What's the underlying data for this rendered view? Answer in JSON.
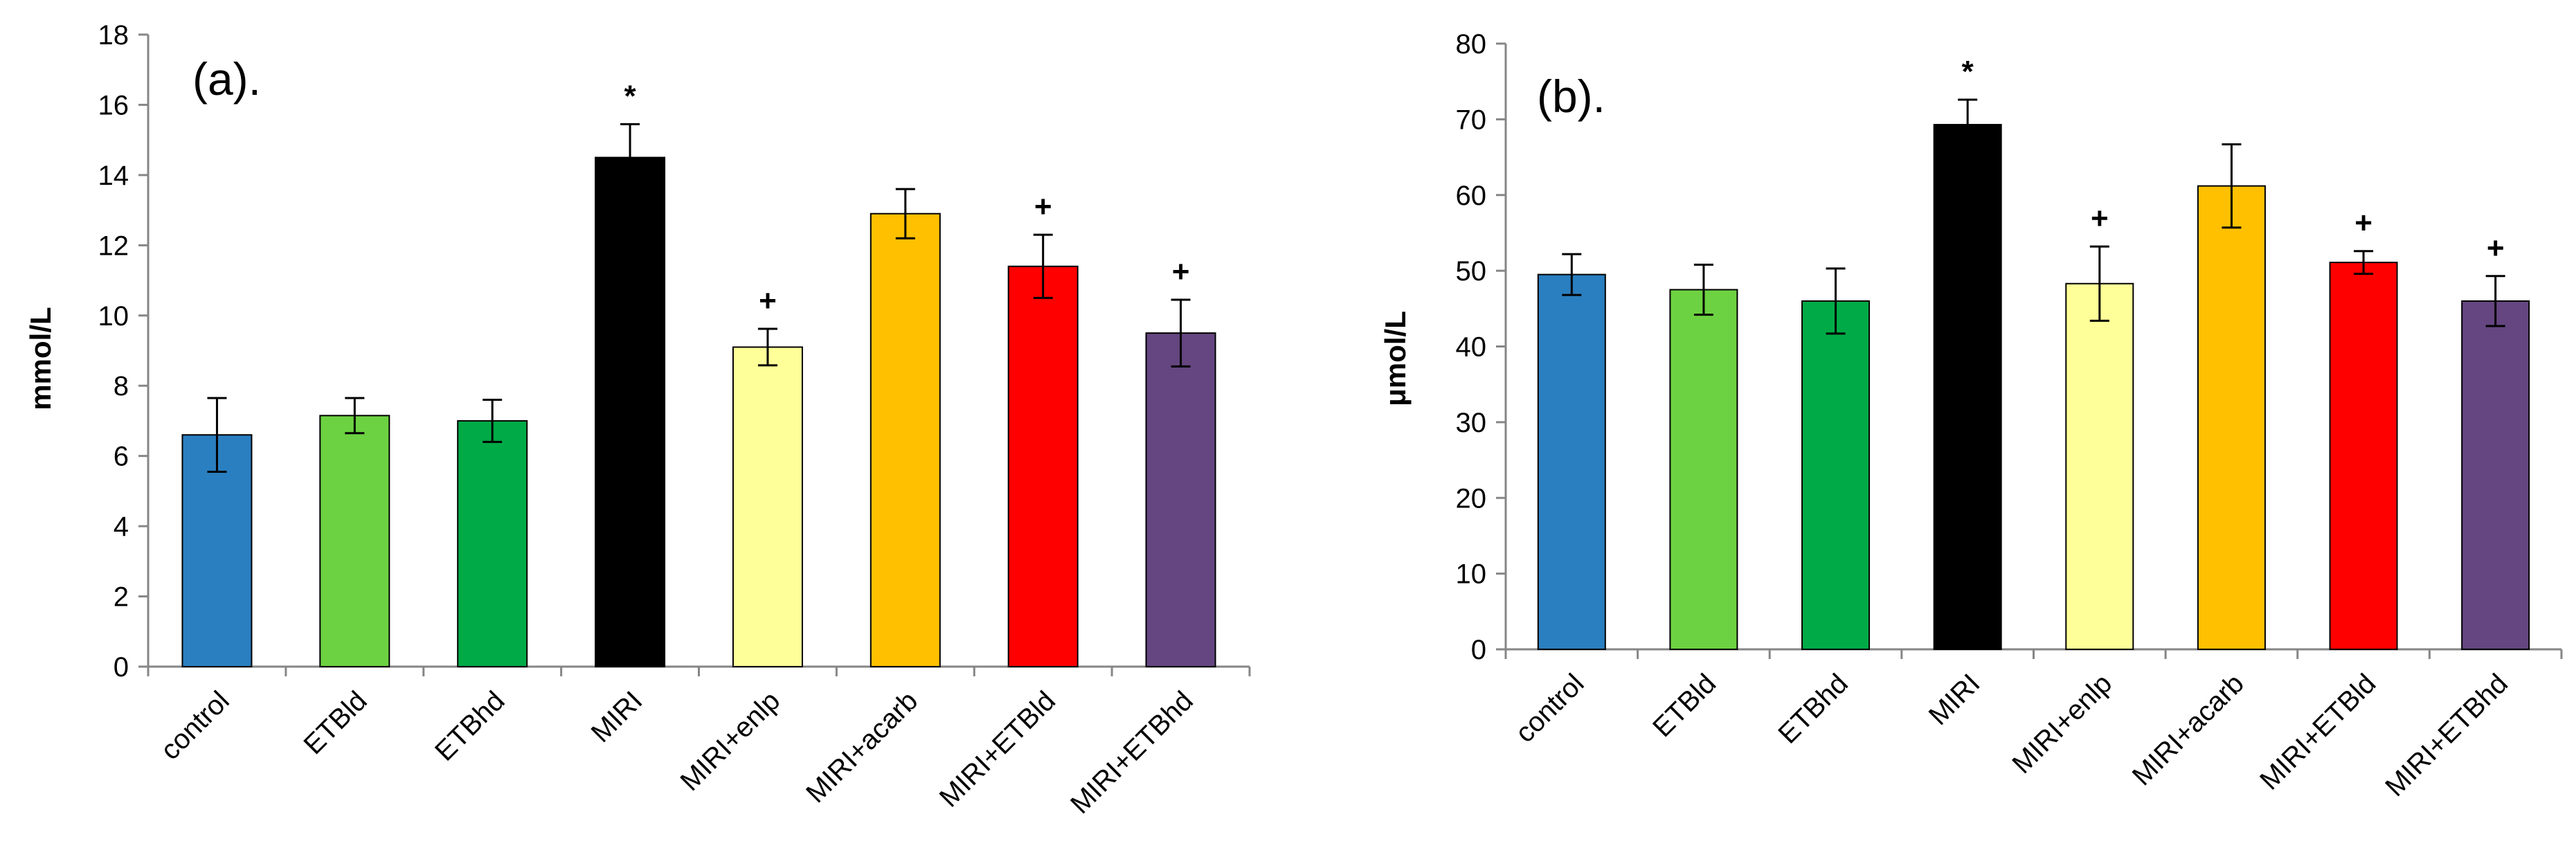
{
  "chart_data": [
    {
      "type": "bar",
      "panel_label": "(a).",
      "ylabel": "mmol/L",
      "xlabel": "",
      "ylim": [
        0,
        18
      ],
      "ytick_step": 2,
      "yticks": [
        "0",
        "2",
        "4",
        "6",
        "8",
        "10",
        "12",
        "14",
        "16",
        "18"
      ],
      "categories": [
        "control",
        "ETBld",
        "ETBhd",
        "MIRI",
        "MIRI+enlp",
        "MIRI+acarb",
        "MIRI+ETBld",
        "MIRI+ETBhd"
      ],
      "values": [
        6.6,
        7.15,
        7.0,
        14.5,
        9.1,
        12.9,
        11.4,
        9.5
      ],
      "errors": [
        1.05,
        0.5,
        0.6,
        0.95,
        0.52,
        0.7,
        0.9,
        0.95
      ],
      "colors": [
        "#2a7fc0",
        "#6dd242",
        "#00aa47",
        "#000000",
        "#ffff99",
        "#ffc000",
        "#ff0000",
        "#654680"
      ],
      "annotations": [
        "",
        "",
        "",
        "*",
        "+",
        "",
        "+",
        "+"
      ]
    },
    {
      "type": "bar",
      "panel_label": "(b).",
      "ylabel": "μmol/L",
      "xlabel": "",
      "ylim": [
        0,
        80
      ],
      "ytick_step": 10,
      "yticks": [
        "0",
        "10",
        "20",
        "30",
        "40",
        "50",
        "60",
        "70",
        "80"
      ],
      "categories": [
        "control",
        "ETBld",
        "ETBhd",
        "MIRI",
        "MIRI+enlp",
        "MIRI+acarb",
        "MIRI+ETBld",
        "MIRI+ETBhd"
      ],
      "values": [
        49.5,
        47.5,
        46.0,
        69.3,
        48.3,
        61.2,
        51.1,
        46.0
      ],
      "errors": [
        2.7,
        3.3,
        4.3,
        3.3,
        4.9,
        5.5,
        1.5,
        3.3
      ],
      "colors": [
        "#2a7fc0",
        "#6dd242",
        "#00aa47",
        "#000000",
        "#ffff99",
        "#ffc000",
        "#ff0000",
        "#654680"
      ],
      "annotations": [
        "",
        "",
        "",
        "*",
        "+",
        "",
        "+",
        "+"
      ]
    }
  ]
}
